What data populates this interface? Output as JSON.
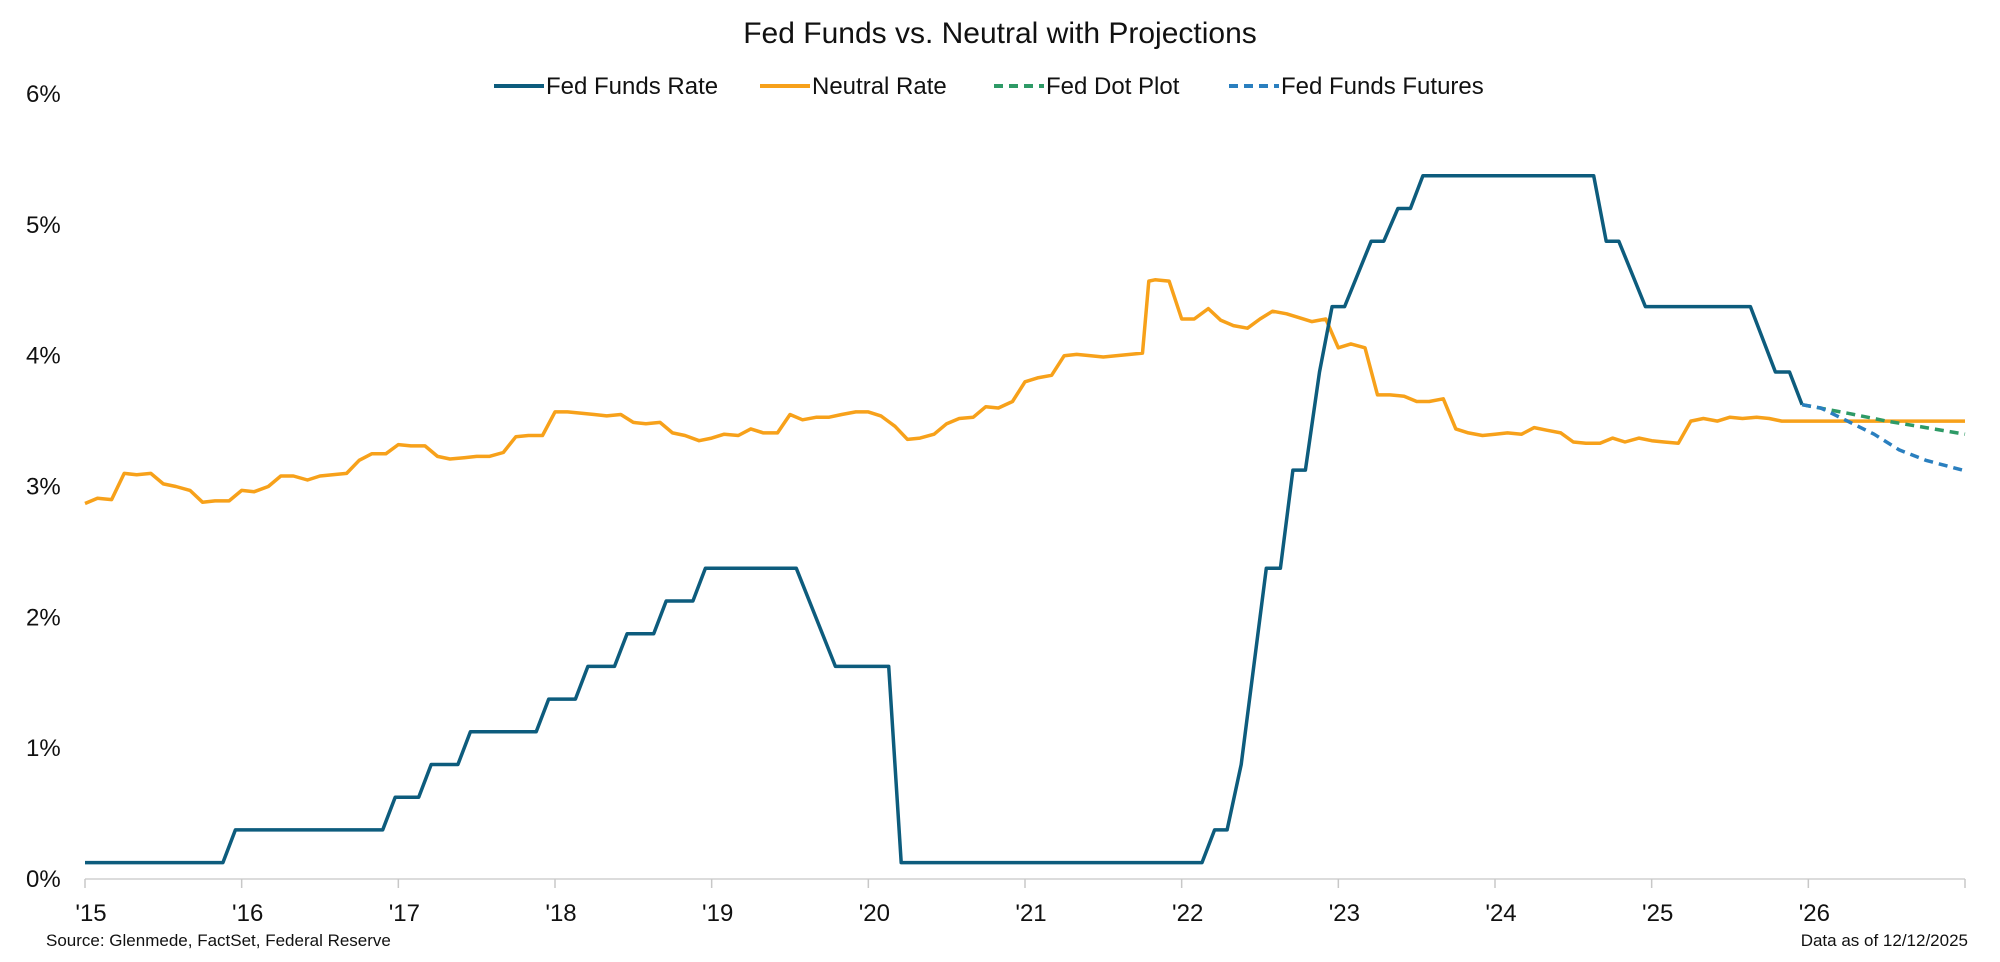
{
  "chart_data": {
    "type": "line",
    "title": "Fed Funds vs. Neutral with Projections",
    "xlabel": "",
    "ylabel": "",
    "x_range": [
      2015.0,
      2027.0
    ],
    "ylim": [
      0,
      6
    ],
    "y_ticks": [
      0,
      1,
      2,
      3,
      4,
      5,
      6
    ],
    "y_tick_labels": [
      "0%",
      "1%",
      "2%",
      "3%",
      "4%",
      "5%",
      "6%"
    ],
    "x_ticks": [
      2015,
      2016,
      2017,
      2018,
      2019,
      2020,
      2021,
      2022,
      2023,
      2024,
      2025,
      2026
    ],
    "x_tick_labels": [
      "'15",
      "'16",
      "'17",
      "'18",
      "'19",
      "'20",
      "'21",
      "'22",
      "'23",
      "'24",
      "'25",
      "'26"
    ],
    "grid": false,
    "legend_position": "top-center",
    "series": [
      {
        "name": "Fed Funds Rate",
        "color": "#0d5c7d",
        "style": "solid",
        "points": [
          [
            2015.0,
            0.125
          ],
          [
            2015.88,
            0.125
          ],
          [
            2015.96,
            0.375
          ],
          [
            2016.9,
            0.375
          ],
          [
            2016.98,
            0.625
          ],
          [
            2017.13,
            0.625
          ],
          [
            2017.21,
            0.875
          ],
          [
            2017.38,
            0.875
          ],
          [
            2017.46,
            1.125
          ],
          [
            2017.88,
            1.125
          ],
          [
            2017.96,
            1.375
          ],
          [
            2018.13,
            1.375
          ],
          [
            2018.21,
            1.625
          ],
          [
            2018.38,
            1.625
          ],
          [
            2018.46,
            1.875
          ],
          [
            2018.63,
            1.875
          ],
          [
            2018.71,
            2.125
          ],
          [
            2018.88,
            2.125
          ],
          [
            2018.96,
            2.375
          ],
          [
            2019.54,
            2.375
          ],
          [
            2019.79,
            1.625
          ],
          [
            2020.13,
            1.625
          ],
          [
            2020.21,
            0.125
          ],
          [
            2022.13,
            0.125
          ],
          [
            2022.21,
            0.375
          ],
          [
            2022.29,
            0.375
          ],
          [
            2022.38,
            0.875
          ],
          [
            2022.54,
            2.375
          ],
          [
            2022.63,
            2.375
          ],
          [
            2022.71,
            3.125
          ],
          [
            2022.79,
            3.125
          ],
          [
            2022.88,
            3.875
          ],
          [
            2022.96,
            4.375
          ],
          [
            2023.04,
            4.375
          ],
          [
            2023.21,
            4.875
          ],
          [
            2023.29,
            4.875
          ],
          [
            2023.38,
            5.125
          ],
          [
            2023.46,
            5.125
          ],
          [
            2023.54,
            5.375
          ],
          [
            2024.63,
            5.375
          ],
          [
            2024.71,
            4.875
          ],
          [
            2024.79,
            4.875
          ],
          [
            2024.96,
            4.375
          ],
          [
            2025.63,
            4.375
          ],
          [
            2025.79,
            3.875
          ],
          [
            2025.88,
            3.875
          ],
          [
            2025.96,
            3.625
          ]
        ]
      },
      {
        "name": "Neutral Rate",
        "color": "#f7a11a",
        "style": "solid",
        "points": [
          [
            2015.0,
            2.87
          ],
          [
            2015.08,
            2.91
          ],
          [
            2015.17,
            2.9
          ],
          [
            2015.25,
            3.1
          ],
          [
            2015.33,
            3.09
          ],
          [
            2015.42,
            3.1
          ],
          [
            2015.5,
            3.02
          ],
          [
            2015.58,
            3.0
          ],
          [
            2015.67,
            2.97
          ],
          [
            2015.75,
            2.88
          ],
          [
            2015.83,
            2.89
          ],
          [
            2015.92,
            2.89
          ],
          [
            2016.0,
            2.97
          ],
          [
            2016.08,
            2.96
          ],
          [
            2016.17,
            3.0
          ],
          [
            2016.25,
            3.08
          ],
          [
            2016.33,
            3.08
          ],
          [
            2016.42,
            3.05
          ],
          [
            2016.5,
            3.08
          ],
          [
            2016.58,
            3.09
          ],
          [
            2016.67,
            3.1
          ],
          [
            2016.75,
            3.2
          ],
          [
            2016.83,
            3.25
          ],
          [
            2016.92,
            3.25
          ],
          [
            2017.0,
            3.32
          ],
          [
            2017.08,
            3.31
          ],
          [
            2017.17,
            3.31
          ],
          [
            2017.25,
            3.23
          ],
          [
            2017.33,
            3.21
          ],
          [
            2017.42,
            3.22
          ],
          [
            2017.5,
            3.23
          ],
          [
            2017.58,
            3.23
          ],
          [
            2017.67,
            3.26
          ],
          [
            2017.75,
            3.38
          ],
          [
            2017.83,
            3.39
          ],
          [
            2017.92,
            3.39
          ],
          [
            2018.0,
            3.57
          ],
          [
            2018.08,
            3.57
          ],
          [
            2018.17,
            3.56
          ],
          [
            2018.25,
            3.55
          ],
          [
            2018.33,
            3.54
          ],
          [
            2018.42,
            3.55
          ],
          [
            2018.5,
            3.49
          ],
          [
            2018.58,
            3.48
          ],
          [
            2018.67,
            3.49
          ],
          [
            2018.75,
            3.41
          ],
          [
            2018.83,
            3.39
          ],
          [
            2018.92,
            3.35
          ],
          [
            2019.0,
            3.37
          ],
          [
            2019.08,
            3.4
          ],
          [
            2019.17,
            3.39
          ],
          [
            2019.25,
            3.44
          ],
          [
            2019.33,
            3.41
          ],
          [
            2019.42,
            3.41
          ],
          [
            2019.5,
            3.55
          ],
          [
            2019.58,
            3.51
          ],
          [
            2019.67,
            3.53
          ],
          [
            2019.75,
            3.53
          ],
          [
            2019.83,
            3.55
          ],
          [
            2019.92,
            3.57
          ],
          [
            2020.0,
            3.57
          ],
          [
            2020.08,
            3.54
          ],
          [
            2020.17,
            3.46
          ],
          [
            2020.25,
            3.36
          ],
          [
            2020.33,
            3.37
          ],
          [
            2020.42,
            3.4
          ],
          [
            2020.5,
            3.48
          ],
          [
            2020.58,
            3.52
          ],
          [
            2020.67,
            3.53
          ],
          [
            2020.75,
            3.61
          ],
          [
            2020.83,
            3.6
          ],
          [
            2020.92,
            3.65
          ],
          [
            2021.0,
            3.8
          ],
          [
            2021.08,
            3.83
          ],
          [
            2021.17,
            3.85
          ],
          [
            2021.25,
            4.0
          ],
          [
            2021.33,
            4.01
          ],
          [
            2021.42,
            4.0
          ],
          [
            2021.5,
            3.99
          ],
          [
            2021.58,
            4.0
          ],
          [
            2021.67,
            4.01
          ],
          [
            2021.75,
            4.02
          ],
          [
            2021.79,
            4.57
          ],
          [
            2021.83,
            4.58
          ],
          [
            2021.92,
            4.57
          ],
          [
            2022.0,
            4.28
          ],
          [
            2022.08,
            4.28
          ],
          [
            2022.17,
            4.36
          ],
          [
            2022.25,
            4.27
          ],
          [
            2022.33,
            4.23
          ],
          [
            2022.42,
            4.21
          ],
          [
            2022.5,
            4.28
          ],
          [
            2022.58,
            4.34
          ],
          [
            2022.67,
            4.32
          ],
          [
            2022.75,
            4.29
          ],
          [
            2022.83,
            4.26
          ],
          [
            2022.92,
            4.28
          ],
          [
            2023.0,
            4.06
          ],
          [
            2023.08,
            4.09
          ],
          [
            2023.17,
            4.06
          ],
          [
            2023.25,
            3.7
          ],
          [
            2023.33,
            3.7
          ],
          [
            2023.42,
            3.69
          ],
          [
            2023.5,
            3.65
          ],
          [
            2023.58,
            3.65
          ],
          [
            2023.67,
            3.67
          ],
          [
            2023.75,
            3.44
          ],
          [
            2023.83,
            3.41
          ],
          [
            2023.92,
            3.39
          ],
          [
            2024.0,
            3.4
          ],
          [
            2024.08,
            3.41
          ],
          [
            2024.17,
            3.4
          ],
          [
            2024.25,
            3.45
          ],
          [
            2024.33,
            3.43
          ],
          [
            2024.42,
            3.41
          ],
          [
            2024.5,
            3.34
          ],
          [
            2024.58,
            3.33
          ],
          [
            2024.67,
            3.33
          ],
          [
            2024.75,
            3.37
          ],
          [
            2024.83,
            3.34
          ],
          [
            2024.92,
            3.37
          ],
          [
            2025.0,
            3.35
          ],
          [
            2025.08,
            3.34
          ],
          [
            2025.17,
            3.33
          ],
          [
            2025.25,
            3.5
          ],
          [
            2025.33,
            3.52
          ],
          [
            2025.42,
            3.5
          ],
          [
            2025.5,
            3.53
          ],
          [
            2025.58,
            3.52
          ],
          [
            2025.67,
            3.53
          ],
          [
            2025.75,
            3.52
          ],
          [
            2025.83,
            3.5
          ],
          [
            2026.0,
            3.5
          ],
          [
            2026.5,
            3.5
          ],
          [
            2027.0,
            3.5
          ]
        ]
      },
      {
        "name": "Fed Dot Plot",
        "color": "#2e9a66",
        "style": "dashed",
        "points": [
          [
            2025.96,
            3.625
          ],
          [
            2026.25,
            3.56
          ],
          [
            2026.5,
            3.5
          ],
          [
            2026.75,
            3.45
          ],
          [
            2027.0,
            3.4
          ]
        ]
      },
      {
        "name": "Fed Funds Futures",
        "color": "#2a7fbf",
        "style": "dashed",
        "points": [
          [
            2025.96,
            3.625
          ],
          [
            2026.08,
            3.6
          ],
          [
            2026.25,
            3.5
          ],
          [
            2026.42,
            3.4
          ],
          [
            2026.58,
            3.28
          ],
          [
            2026.75,
            3.2
          ],
          [
            2027.0,
            3.12
          ]
        ]
      }
    ]
  },
  "footer": {
    "source": "Source: Glenmede, FactSet, Federal Reserve",
    "asof": "Data as of 12/12/2025"
  }
}
